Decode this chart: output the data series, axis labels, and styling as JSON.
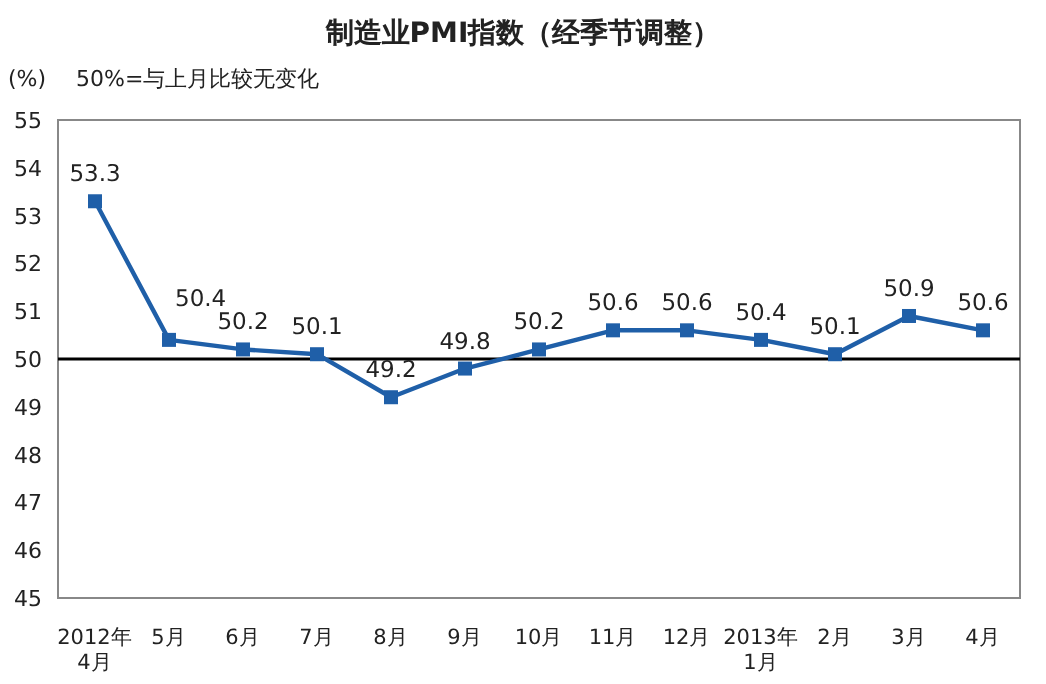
{
  "chart_data": {
    "type": "line",
    "title": "制造业PMI指数（经季节调整）",
    "ylabel": "(%)",
    "annotations": [
      "50%=与上月比较无变化"
    ],
    "categories": [
      "2012年\n4月",
      "5月",
      "6月",
      "7月",
      "8月",
      "9月",
      "10月",
      "11月",
      "12月",
      "2013年\n1月",
      "2月",
      "3月",
      "4月"
    ],
    "series": [
      {
        "color": "#1f5fa8",
        "values": [
          53.3,
          50.4,
          50.2,
          50.1,
          49.2,
          49.8,
          50.2,
          50.6,
          50.6,
          50.4,
          50.1,
          50.9,
          50.6
        ]
      }
    ],
    "ylim": [
      45,
      55
    ],
    "yticks": [
      45,
      46,
      47,
      48,
      49,
      50,
      51,
      52,
      53,
      54,
      55
    ],
    "ref_lines": [
      {
        "axis": "y",
        "value": 50,
        "color": "#000000"
      }
    ],
    "marker": "square",
    "data_labels": true
  }
}
